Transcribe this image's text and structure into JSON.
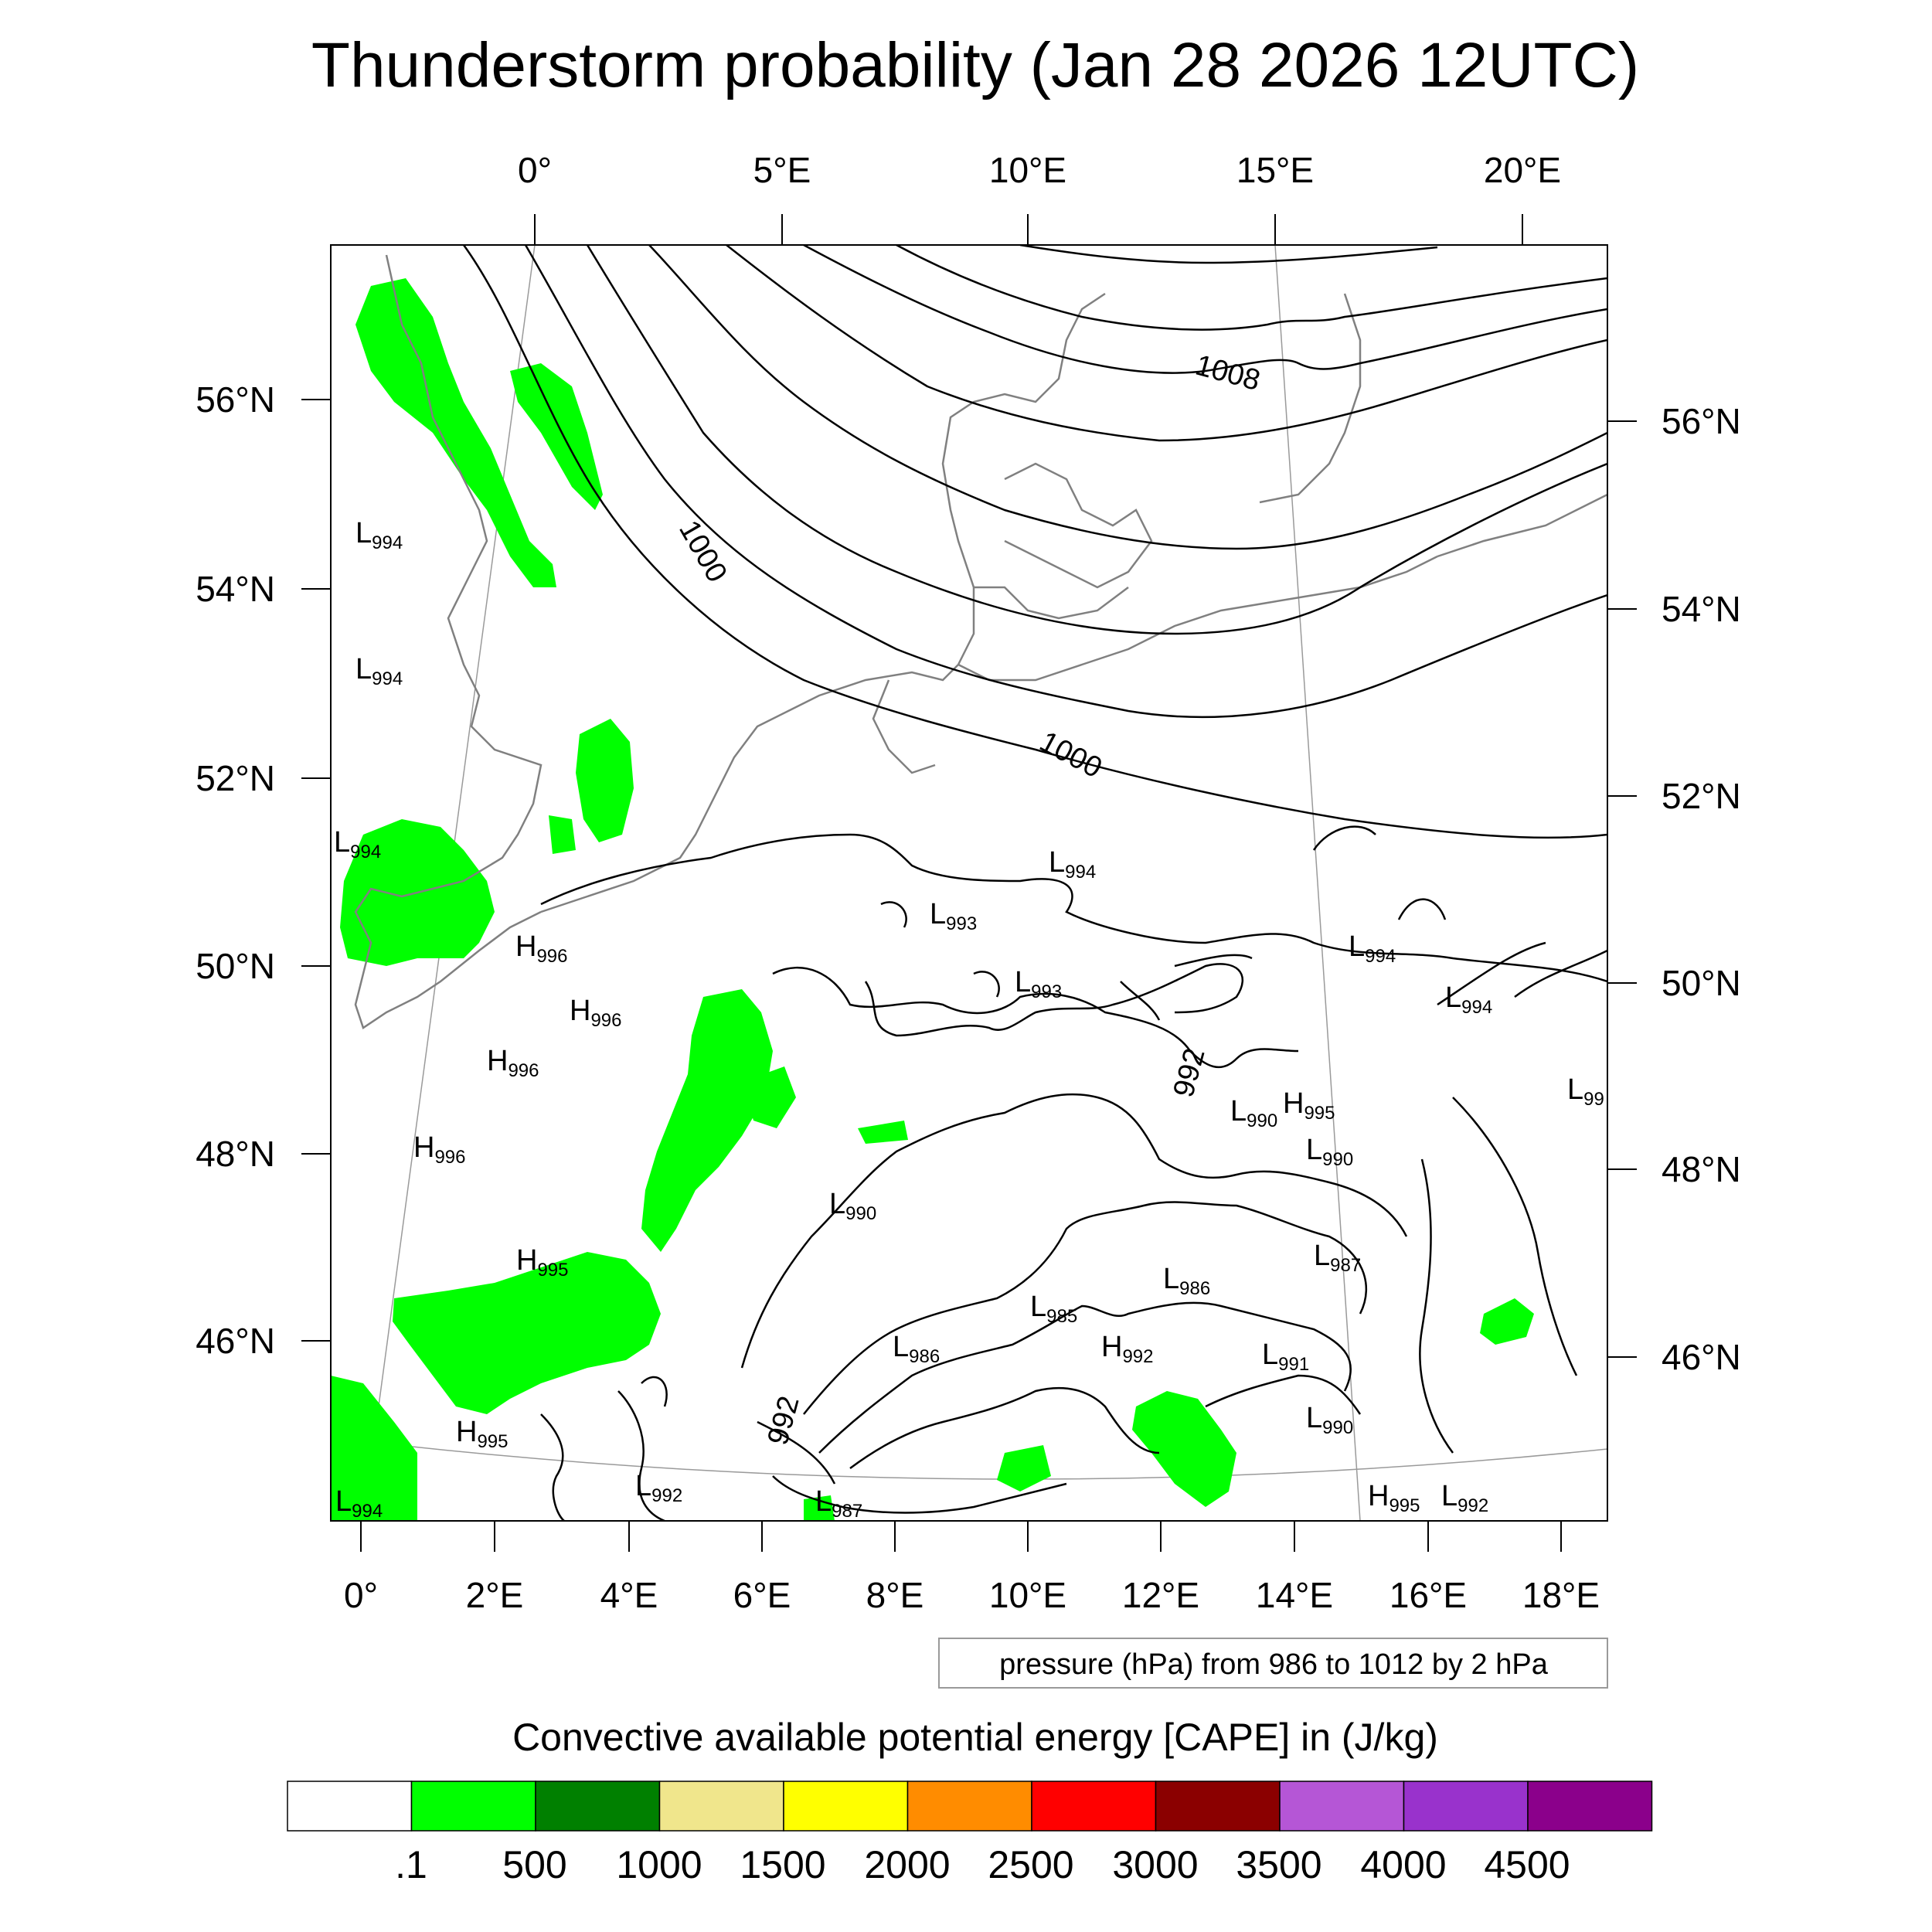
{
  "title": "Thunderstorm probability (Jan 28 2026 12UTC)",
  "top_lon_ticks": [
    "0°",
    "5°E",
    "10°E",
    "15°E",
    "20°E"
  ],
  "left_lat_ticks": [
    "56°N",
    "54°N",
    "52°N",
    "50°N",
    "48°N",
    "46°N"
  ],
  "right_lat_ticks": [
    "56°N",
    "54°N",
    "52°N",
    "50°N",
    "48°N",
    "46°N"
  ],
  "bottom_lon_ticks": [
    "0°",
    "2°E",
    "4°E",
    "6°E",
    "8°E",
    "10°E",
    "12°E",
    "14°E",
    "16°E",
    "18°E"
  ],
  "pressure_note": "pressure (hPa) from 986 to 1012 by 2 hPa",
  "isobar_labels": [
    "1000",
    "1000",
    "1008",
    "992",
    "992"
  ],
  "pressure_centers": [
    {
      "type": "L",
      "value": "994"
    },
    {
      "type": "L",
      "value": "994"
    },
    {
      "type": "L",
      "value": "994"
    },
    {
      "type": "L",
      "value": "994"
    },
    {
      "type": "L",
      "value": "993"
    },
    {
      "type": "L",
      "value": "993"
    },
    {
      "type": "L",
      "value": "994"
    },
    {
      "type": "L",
      "value": "994"
    },
    {
      "type": "L",
      "value": "99"
    },
    {
      "type": "H",
      "value": "996"
    },
    {
      "type": "H",
      "value": "996"
    },
    {
      "type": "H",
      "value": "996"
    },
    {
      "type": "H",
      "value": "996"
    },
    {
      "type": "L",
      "value": "990"
    },
    {
      "type": "H",
      "value": "995"
    },
    {
      "type": "L",
      "value": "990"
    },
    {
      "type": "L",
      "value": "990"
    },
    {
      "type": "H",
      "value": "995"
    },
    {
      "type": "L",
      "value": "987"
    },
    {
      "type": "L",
      "value": "986"
    },
    {
      "type": "L",
      "value": "985"
    },
    {
      "type": "L",
      "value": "986"
    },
    {
      "type": "H",
      "value": "992"
    },
    {
      "type": "L",
      "value": "991"
    },
    {
      "type": "L",
      "value": "990"
    },
    {
      "type": "H",
      "value": "995"
    },
    {
      "type": "L",
      "value": "992"
    },
    {
      "type": "L",
      "value": "987"
    },
    {
      "type": "H",
      "value": "995"
    },
    {
      "type": "L",
      "value": "992"
    },
    {
      "type": "L",
      "value": "994"
    }
  ],
  "colorbar": {
    "title": "Convective available potential energy [CAPE] in (J/kg)",
    "colors": [
      "#ffffff",
      "#00ff00",
      "#008000",
      "#f0e68c",
      "#ffff00",
      "#ff8c00",
      "#ff0000",
      "#8b0000",
      "#b556d6",
      "#9932cc",
      "#8b008b"
    ],
    "labels": [
      ".1",
      "500",
      "1000",
      "1500",
      "2000",
      "2500",
      "3000",
      "3500",
      "4000",
      "4500"
    ]
  },
  "colors": {
    "cape_low": "#00ff00",
    "coastline": "#808080",
    "isobar": "#000000"
  }
}
